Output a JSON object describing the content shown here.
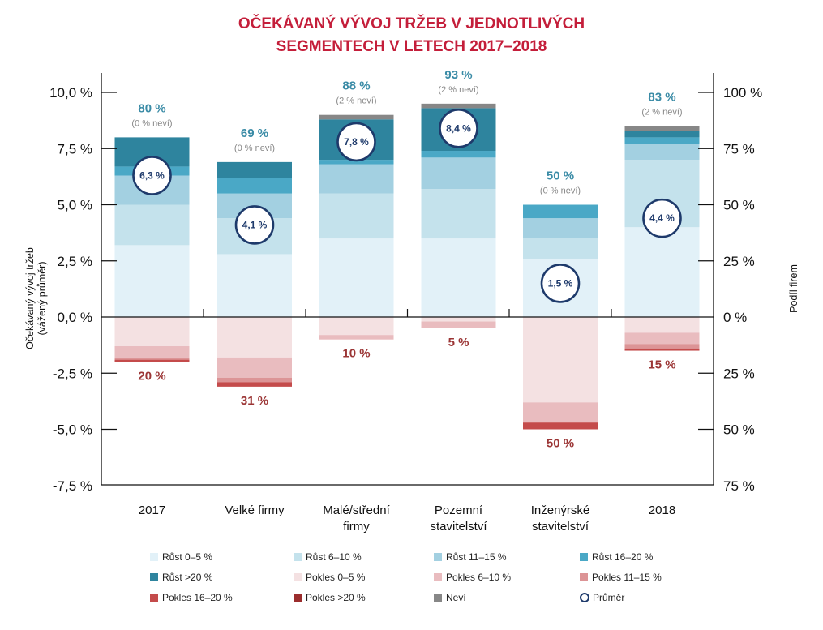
{
  "chart_data": {
    "type": "bar",
    "stacked": true,
    "title_lines": [
      "OČEKÁVANÝ VÝVOJ TRŽEB V JEDNOTLIVÝCH",
      "SEGMENTECH V LETECH 2017–2018"
    ],
    "ylabel_left_lines": [
      "Očekávaný vývoj tržeb",
      "(vážený průměr)"
    ],
    "ylabel_right": "Podíl firem",
    "ylim_left": [
      -7.5,
      10.0
    ],
    "ylim_right": [
      -75,
      100
    ],
    "left_ticks": [
      {
        "value": 10.0,
        "label": "10,0 %"
      },
      {
        "value": 7.5,
        "label": "7,5 %"
      },
      {
        "value": 5.0,
        "label": "5,0 %"
      },
      {
        "value": 2.5,
        "label": "2,5 %"
      },
      {
        "value": 0.0,
        "label": "0,0 %"
      },
      {
        "value": -2.5,
        "label": "-2,5 %"
      },
      {
        "value": -5.0,
        "label": "-5,0 %"
      },
      {
        "value": -7.5,
        "label": "-7,5 %"
      }
    ],
    "right_ticks": [
      {
        "value": 100,
        "label": "100 %"
      },
      {
        "value": 75,
        "label": "75 %"
      },
      {
        "value": 50,
        "label": "50 %"
      },
      {
        "value": 25,
        "label": "25 %"
      },
      {
        "value": 0,
        "label": "0 %"
      },
      {
        "value": -25,
        "label": "25 %"
      },
      {
        "value": -50,
        "label": "50 %"
      },
      {
        "value": -75,
        "label": "75 %"
      }
    ],
    "categories": [
      {
        "lines": [
          "2017"
        ]
      },
      {
        "lines": [
          "Velké firmy"
        ]
      },
      {
        "lines": [
          "Malé/střední",
          "firmy"
        ]
      },
      {
        "lines": [
          "Pozemní",
          "stavitelství"
        ]
      },
      {
        "lines": [
          "Inženýrské",
          "stavitelství"
        ]
      },
      {
        "lines": [
          "2018"
        ]
      }
    ],
    "positive_series": [
      {
        "name": "Růst 0–5 %",
        "color": "#e2f1f8",
        "values": [
          32,
          28,
          35,
          35,
          26,
          40
        ]
      },
      {
        "name": "Růst 6–10 %",
        "color": "#c4e2ec",
        "values": [
          18,
          16,
          20,
          22,
          9,
          30
        ]
      },
      {
        "name": "Růst 11–15 %",
        "color": "#a3d0e1",
        "values": [
          13,
          11,
          13,
          14,
          9,
          7
        ]
      },
      {
        "name": "Růst 16–20 %",
        "color": "#4aa8c6",
        "values": [
          4,
          7,
          2,
          3,
          6,
          3
        ]
      },
      {
        "name": "Růst >20 %",
        "color": "#2e849e",
        "values": [
          13,
          7,
          18,
          19,
          0,
          3
        ]
      },
      {
        "name": "Neví",
        "color": "#878787",
        "values": [
          0,
          0,
          2,
          2,
          0,
          2
        ]
      }
    ],
    "negative_series": [
      {
        "name": "Pokles 0–5 %",
        "color": "#f4e1e2",
        "values": [
          13,
          18,
          8,
          2,
          38,
          7
        ]
      },
      {
        "name": "Pokles 6–10 %",
        "color": "#e9bcbf",
        "values": [
          5,
          9,
          2,
          3,
          9,
          5
        ]
      },
      {
        "name": "Pokles 11–15 %",
        "color": "#dc9496",
        "values": [
          1,
          2,
          0,
          0,
          0,
          2
        ]
      },
      {
        "name": "Pokles 16–20 %",
        "color": "#c44b4b",
        "values": [
          1,
          2,
          0,
          0,
          3,
          1
        ]
      },
      {
        "name": "Pokles >20 %",
        "color": "#9b2d2d",
        "values": [
          0,
          0,
          0,
          0,
          0,
          0
        ]
      }
    ],
    "top_labels": [
      "80 %",
      "69 %",
      "88 %",
      "93 %",
      "50 %",
      "83 %"
    ],
    "top_sublabels": [
      "(0 % neví)",
      "(0 % neví)",
      "(2 % neví)",
      "(2 % neví)",
      "(0 % neví)",
      "(2 % neví)"
    ],
    "bottom_labels": [
      "20 %",
      "31 %",
      "10 %",
      "5 %",
      "50 %",
      "15 %"
    ],
    "averages": [
      6.3,
      4.1,
      7.8,
      8.4,
      1.5,
      4.4
    ],
    "average_labels": [
      "6,3 %",
      "4,1 %",
      "7,8 %",
      "8,4 %",
      "1,5 %",
      "4,4 %"
    ],
    "colors": {
      "title": "#c41e3a",
      "top_label": "#3a8ba6",
      "bottom_label": "#9b3535",
      "sublabel": "#888888",
      "average_ring": "#1e3a6b"
    }
  },
  "legend": [
    {
      "label": "Růst 0–5 %",
      "color": "#e2f1f8",
      "kind": "swatch"
    },
    {
      "label": "Růst 6–10 %",
      "color": "#c4e2ec",
      "kind": "swatch"
    },
    {
      "label": "Růst 11–15 %",
      "color": "#a3d0e1",
      "kind": "swatch"
    },
    {
      "label": "Růst 16–20 %",
      "color": "#4aa8c6",
      "kind": "swatch"
    },
    {
      "label": "Růst >20 %",
      "color": "#2e849e",
      "kind": "swatch"
    },
    {
      "label": "Pokles 0–5 %",
      "color": "#f4e1e2",
      "kind": "swatch"
    },
    {
      "label": "Pokles 6–10 %",
      "color": "#e9bcbf",
      "kind": "swatch"
    },
    {
      "label": "Pokles 11–15 %",
      "color": "#dc9496",
      "kind": "swatch"
    },
    {
      "label": "Pokles 16–20 %",
      "color": "#c44b4b",
      "kind": "swatch"
    },
    {
      "label": "Pokles >20 %",
      "color": "#9b2d2d",
      "kind": "swatch"
    },
    {
      "label": "Neví",
      "color": "#878787",
      "kind": "swatch"
    },
    {
      "label": "Průměr",
      "color": "#1e3a6b",
      "kind": "ring"
    }
  ]
}
